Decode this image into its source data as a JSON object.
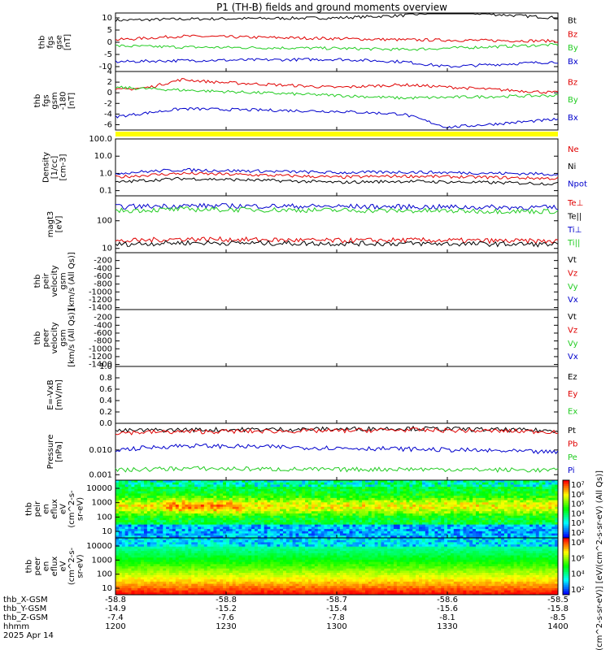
{
  "title": "P1 (TH-B) fields and ground moments overview",
  "colors": {
    "black": "#000000",
    "red": "#e00000",
    "green": "#22cc22",
    "blue": "#0000cc",
    "yellow": "#ffff00",
    "darkgreen": "#008800"
  },
  "chart_data": [
    {
      "id": "fgs_gse",
      "type": "line",
      "ylabel": [
        "thb",
        "fgs",
        "gse",
        "[nT]"
      ],
      "ylim": [
        -12,
        12
      ],
      "yticks": [
        "10",
        "5",
        "0",
        "-5",
        "-10"
      ],
      "series": [
        {
          "name": "Bt",
          "color": "black",
          "x": [
            1200,
            1230,
            1300,
            1330,
            1350,
            1400
          ],
          "y": [
            9,
            9.5,
            10,
            11,
            12.5,
            10
          ]
        },
        {
          "name": "Bz",
          "color": "red",
          "x": [
            1200,
            1230,
            1300,
            1330,
            1400
          ],
          "y": [
            1,
            2.5,
            1.5,
            1,
            0.5
          ]
        },
        {
          "name": "By",
          "color": "green",
          "x": [
            1200,
            1230,
            1300,
            1330,
            1400
          ],
          "y": [
            -1.5,
            -2,
            -2.5,
            -3,
            -1
          ]
        },
        {
          "name": "Bx",
          "color": "blue",
          "x": [
            1200,
            1230,
            1300,
            1330,
            1350,
            1400
          ],
          "y": [
            -8,
            -7.5,
            -7,
            -8,
            -10,
            -8
          ]
        }
      ]
    },
    {
      "id": "fgs_gsm",
      "type": "line",
      "ylabel": [
        "thb",
        "fgs",
        "gsm",
        "-180",
        "[nT]"
      ],
      "ylim": [
        -7,
        4
      ],
      "yticks": [
        "4",
        "2",
        "0",
        "-2",
        "-4",
        "-6"
      ],
      "series": [
        {
          "name": "Bz",
          "color": "red",
          "x": [
            1200,
            1215,
            1230,
            1245,
            1300,
            1330,
            1400
          ],
          "y": [
            0.5,
            1,
            2.5,
            2,
            1,
            1.5,
            0
          ]
        },
        {
          "name": "By",
          "color": "green",
          "x": [
            1200,
            1230,
            1300,
            1330,
            1400
          ],
          "y": [
            1,
            0.5,
            -0.5,
            -1,
            -0.5
          ]
        },
        {
          "name": "Bx",
          "color": "blue",
          "x": [
            1200,
            1230,
            1300,
            1330,
            1350,
            1400
          ],
          "y": [
            -4.5,
            -3,
            -3.5,
            -4,
            -6.5,
            -5
          ]
        }
      ]
    },
    {
      "id": "density",
      "type": "line",
      "log": true,
      "ylabel": [
        "Density",
        "[1/cc]",
        "[cm-3]"
      ],
      "ylim": [
        0.05,
        100
      ],
      "yticks": [
        "100.0",
        "10.0",
        "1.0",
        "0.1"
      ],
      "series": [
        {
          "name": "Ne",
          "color": "red",
          "x": [
            1200,
            1230,
            1300,
            1330,
            1400
          ],
          "y": [
            0.6,
            1.0,
            0.6,
            0.7,
            0.5
          ]
        },
        {
          "name": "Ni",
          "color": "black",
          "x": [
            1200,
            1230,
            1300,
            1330,
            1400
          ],
          "y": [
            0.3,
            0.5,
            0.3,
            0.35,
            0.25
          ]
        },
        {
          "name": "Npot",
          "color": "blue",
          "x": [
            1200,
            1230,
            1300,
            1330,
            1400
          ],
          "y": [
            1.0,
            1.6,
            1.1,
            1.2,
            0.9
          ]
        }
      ]
    },
    {
      "id": "temperature",
      "type": "line",
      "log": true,
      "ylabel": [
        "magt3",
        "[eV]"
      ],
      "ylim": [
        7,
        800
      ],
      "yticks": [
        "100",
        "10"
      ],
      "series": [
        {
          "name": "Te⊥",
          "color": "red",
          "x": [
            1200,
            1230,
            1300,
            1330,
            1400
          ],
          "y": [
            18,
            22,
            19,
            20,
            18
          ]
        },
        {
          "name": "Te||",
          "color": "black",
          "x": [
            1200,
            1230,
            1300,
            1330,
            1400
          ],
          "y": [
            14,
            16,
            15,
            15,
            14
          ]
        },
        {
          "name": "Ti⊥",
          "color": "blue",
          "x": [
            1200,
            1230,
            1300,
            1330,
            1400
          ],
          "y": [
            320,
            350,
            330,
            320,
            300
          ]
        },
        {
          "name": "Ti||",
          "color": "green",
          "x": [
            1200,
            1230,
            1300,
            1330,
            1400
          ],
          "y": [
            230,
            260,
            240,
            230,
            220
          ]
        }
      ]
    },
    {
      "id": "peir_velocity",
      "type": "line",
      "ylabel": [
        "thb",
        "peir",
        "velocity",
        "gsm",
        "[km/s (All Qs)]"
      ],
      "ylim": [
        -1450,
        0
      ],
      "yticks": [
        "-200",
        "-400",
        "-600",
        "-800",
        "-1000",
        "-1200",
        "-1400"
      ],
      "legend": [
        "Vt",
        "Vz",
        "Vy",
        "Vx"
      ],
      "series": []
    },
    {
      "id": "peer_velocity",
      "type": "line",
      "ylabel": [
        "thb",
        "peer",
        "velocity",
        "gsm",
        "[km/s (All Qs)]"
      ],
      "ylim": [
        -1450,
        0
      ],
      "yticks": [
        "-200",
        "-400",
        "-600",
        "-800",
        "-1000",
        "-1200",
        "-1400"
      ],
      "legend": [
        "Vt",
        "Vz",
        "Vy",
        "Vx"
      ],
      "series": []
    },
    {
      "id": "efield",
      "type": "line",
      "ylabel": [
        "E=-VxB",
        "[mV/m]"
      ],
      "ylim": [
        0,
        1
      ],
      "yticks": [
        "1.0",
        "0.8",
        "0.6",
        "0.4",
        "0.2",
        "0.0"
      ],
      "legend": [
        "Ez",
        "Ey",
        "Ex"
      ],
      "series": []
    },
    {
      "id": "pressure",
      "type": "line",
      "log": true,
      "ylabel": [
        "Pressure",
        "[nPa]"
      ],
      "ylim": [
        0.0006,
        0.12
      ],
      "yticks": [
        "0.010",
        "0.001"
      ],
      "series": [
        {
          "name": "Pt",
          "color": "black",
          "x": [
            1200,
            1230,
            1300,
            1330,
            1400
          ],
          "y": [
            0.06,
            0.065,
            0.07,
            0.075,
            0.06
          ]
        },
        {
          "name": "Pb",
          "color": "red",
          "x": [
            1200,
            1230,
            1300,
            1330,
            1400
          ],
          "y": [
            0.05,
            0.055,
            0.06,
            0.065,
            0.055
          ]
        },
        {
          "name": "Pe",
          "color": "green",
          "x": [
            1200,
            1230,
            1300,
            1330,
            1400
          ],
          "y": [
            0.0015,
            0.0018,
            0.0016,
            0.0017,
            0.0015
          ]
        },
        {
          "name": "Pi",
          "color": "blue",
          "x": [
            1200,
            1230,
            1300,
            1330,
            1400
          ],
          "y": [
            0.01,
            0.015,
            0.012,
            0.011,
            0.008
          ]
        }
      ]
    },
    {
      "id": "peir_eflux",
      "type": "heatmap",
      "ylabel": [
        "thb",
        "peir",
        "en",
        "eflux",
        "eV",
        "(cm^2-s-",
        "sr-eV)"
      ],
      "yticks": [
        "10000",
        "1000",
        "100",
        "10"
      ],
      "colorbar_ticks": [
        "10^7",
        "10^6",
        "10^5",
        "10^4",
        "10^3",
        "10^2"
      ]
    },
    {
      "id": "peer_eflux",
      "type": "heatmap",
      "ylabel": [
        "thb",
        "peer",
        "en",
        "eflux",
        "eV",
        "(cm^2-s-",
        "sr-eV)"
      ],
      "yticks": [
        "10000",
        "1000",
        "100",
        "10"
      ],
      "colorbar_ticks": [
        "10^8",
        "10^6",
        "10^4",
        "10^2"
      ]
    }
  ],
  "colorbar_label": "[eV/(cm^2-s-sr-eV)] [eV/(cm^2-s-sr-eV) (All Qs)]",
  "x_axis": {
    "ticks": [
      {
        "hhmm": "1200",
        "X": "-58.8",
        "Y": "-14.9",
        "Z": "-7.4"
      },
      {
        "hhmm": "1230",
        "X": "-58.8",
        "Y": "-15.2",
        "Z": "-7.6"
      },
      {
        "hhmm": "1300",
        "X": "-58.7",
        "Y": "-15.4",
        "Z": "-7.8"
      },
      {
        "hhmm": "1330",
        "X": "-58.6",
        "Y": "-15.6",
        "Z": "-8.1"
      },
      {
        "hhmm": "1400",
        "X": "-58.5",
        "Y": "-15.8",
        "Z": "-8.5"
      }
    ],
    "row_labels": [
      "thb_X-GSM",
      "thb_Y-GSM",
      "thb_Z-GSM",
      "hhmm"
    ],
    "date": "2025 Apr 14"
  }
}
